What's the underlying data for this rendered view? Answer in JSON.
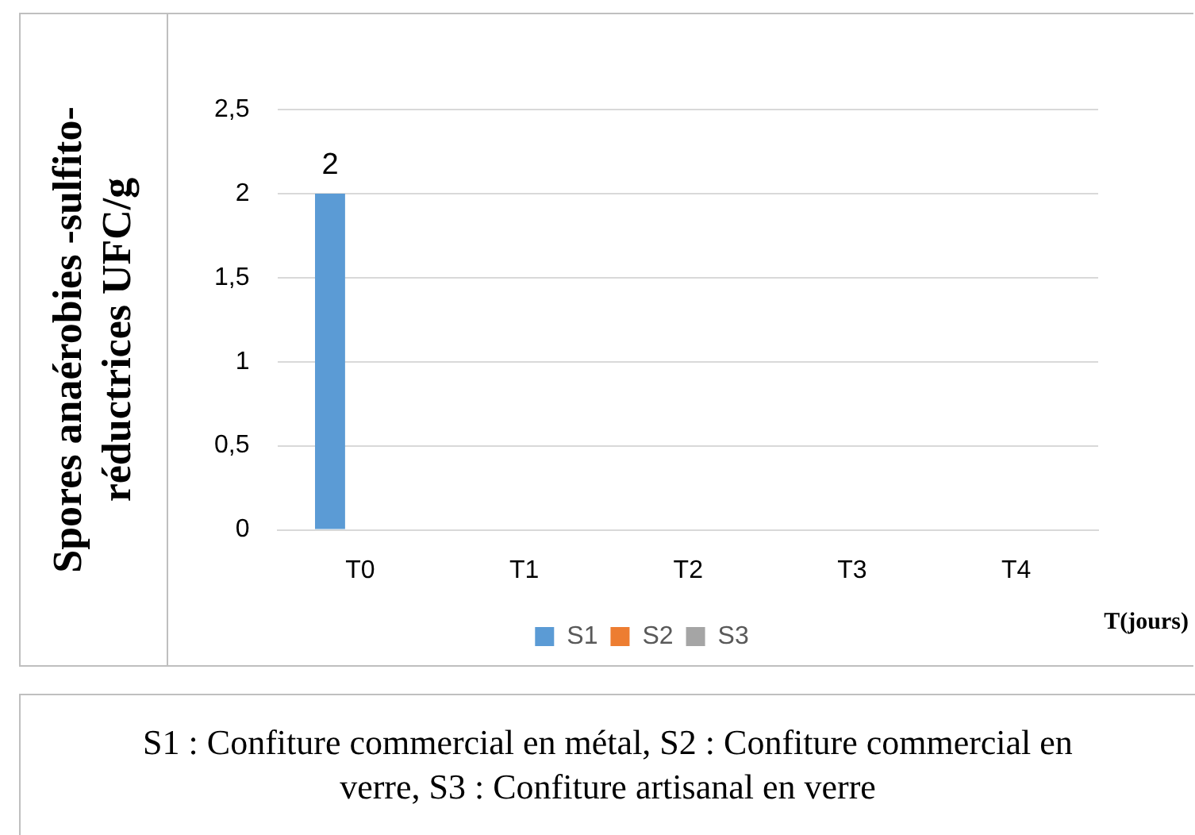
{
  "chart_data": {
    "type": "bar",
    "xlabel": "T(jours)",
    "ylabel": "Spores anaérobies -sulfito-réductrices UFC/g",
    "categories": [
      "T0",
      "T1",
      "T2",
      "T3",
      "T4"
    ],
    "series": [
      {
        "name": "S1",
        "color": "#5b9bd5",
        "values": [
          2,
          0,
          0,
          0,
          0
        ],
        "value_labels": [
          "2",
          null,
          null,
          null,
          null
        ]
      },
      {
        "name": "S2",
        "color": "#ed7d31",
        "values": [
          0,
          0,
          0,
          0,
          0
        ]
      },
      {
        "name": "S3",
        "color": "#a5a5a5",
        "values": [
          0,
          0,
          0,
          0,
          0
        ]
      }
    ],
    "ylim": [
      0,
      2.5
    ],
    "yticks": [
      {
        "value": 0,
        "label": "0"
      },
      {
        "value": 0.5,
        "label": "0,5"
      },
      {
        "value": 1,
        "label": "1"
      },
      {
        "value": 1.5,
        "label": "1,5"
      },
      {
        "value": 2,
        "label": "2"
      },
      {
        "value": 2.5,
        "label": "2,5"
      }
    ],
    "grid": "y",
    "legend": "bottom",
    "annotations": [
      "S1 : Confiture commercial en métal, S2 : Confiture commercial en verre, S3 : Confiture artisanal en verre"
    ]
  }
}
